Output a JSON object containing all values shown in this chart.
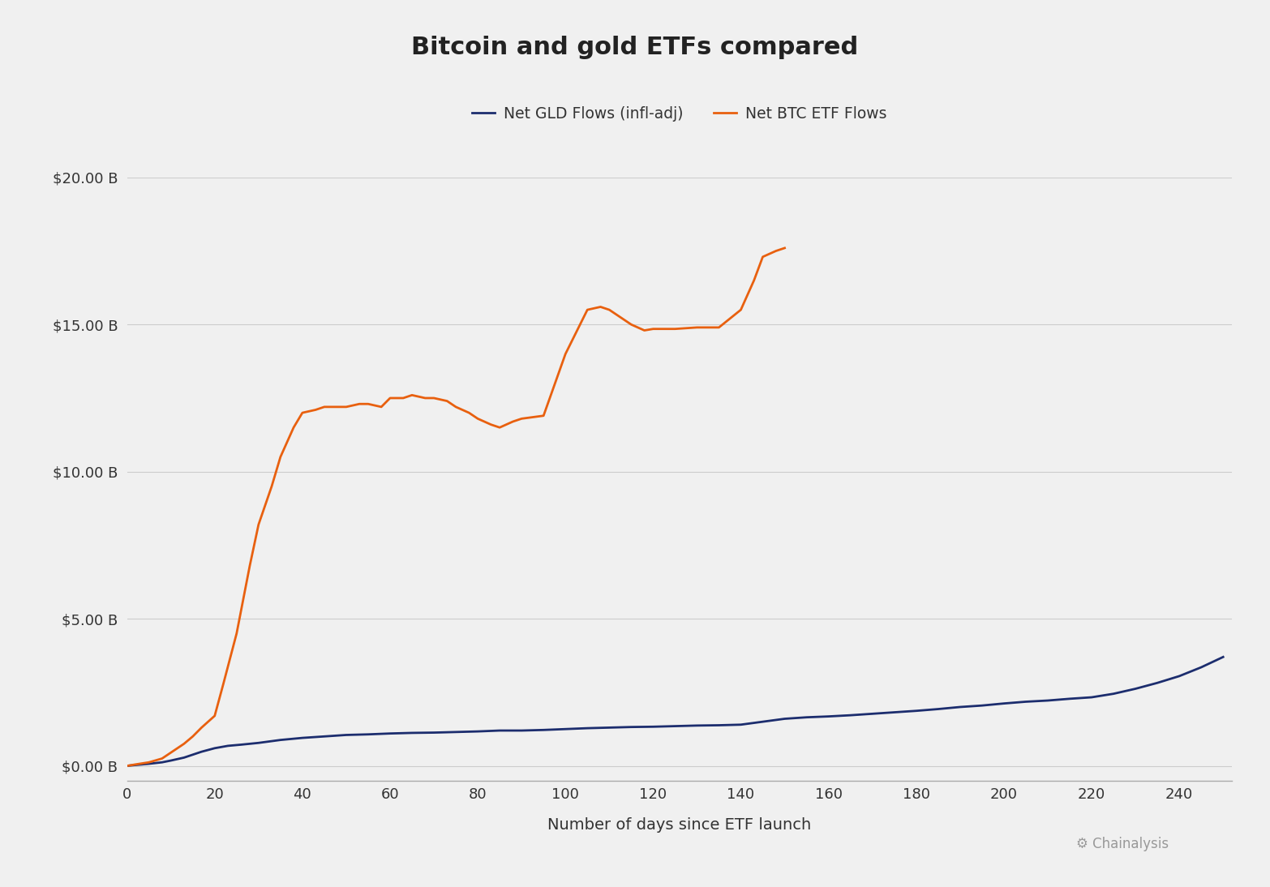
{
  "title": "Bitcoin and gold ETFs compared",
  "xlabel": "Number of days since ETF launch",
  "background_color": "#f0f0f0",
  "plot_bg_color": "#f0f0f0",
  "title_fontsize": 22,
  "legend_labels": [
    "Net GLD Flows (infl-adj)",
    "Net BTC ETF Flows"
  ],
  "gld_color": "#1c2d6e",
  "btc_color": "#e8600f",
  "ylim": [
    0,
    20
  ],
  "xlim": [
    0,
    252
  ],
  "yticks": [
    0,
    5,
    10,
    15,
    20
  ],
  "xticks": [
    0,
    20,
    40,
    60,
    80,
    100,
    120,
    140,
    160,
    180,
    200,
    220,
    240
  ],
  "gld_x": [
    0,
    2,
    5,
    8,
    10,
    13,
    17,
    20,
    23,
    26,
    30,
    35,
    40,
    45,
    50,
    55,
    60,
    65,
    70,
    75,
    80,
    85,
    90,
    95,
    100,
    105,
    110,
    115,
    120,
    125,
    130,
    135,
    140,
    145,
    150,
    155,
    160,
    165,
    170,
    175,
    180,
    185,
    190,
    195,
    200,
    205,
    210,
    215,
    220,
    225,
    230,
    235,
    240,
    245,
    250
  ],
  "gld_y": [
    0.0,
    0.03,
    0.07,
    0.12,
    0.18,
    0.28,
    0.48,
    0.6,
    0.68,
    0.72,
    0.78,
    0.88,
    0.95,
    1.0,
    1.05,
    1.07,
    1.1,
    1.12,
    1.13,
    1.15,
    1.17,
    1.2,
    1.2,
    1.22,
    1.25,
    1.28,
    1.3,
    1.32,
    1.33,
    1.35,
    1.37,
    1.38,
    1.4,
    1.5,
    1.6,
    1.65,
    1.68,
    1.72,
    1.77,
    1.82,
    1.87,
    1.93,
    2.0,
    2.05,
    2.12,
    2.18,
    2.22,
    2.28,
    2.33,
    2.45,
    2.62,
    2.82,
    3.05,
    3.35,
    3.7
  ],
  "btc_x": [
    0,
    2,
    5,
    8,
    10,
    13,
    15,
    17,
    20,
    22,
    25,
    28,
    30,
    33,
    35,
    38,
    40,
    43,
    45,
    48,
    50,
    53,
    55,
    58,
    60,
    63,
    65,
    68,
    70,
    73,
    75,
    78,
    80,
    83,
    85,
    88,
    90,
    95,
    100,
    105,
    108,
    110,
    113,
    115,
    118,
    120,
    125,
    130,
    135,
    140,
    143,
    145,
    148,
    150
  ],
  "btc_y": [
    0.0,
    0.05,
    0.12,
    0.25,
    0.45,
    0.75,
    1.0,
    1.3,
    1.7,
    2.8,
    4.5,
    6.8,
    8.2,
    9.5,
    10.5,
    11.5,
    12.0,
    12.1,
    12.2,
    12.2,
    12.2,
    12.3,
    12.3,
    12.2,
    12.5,
    12.5,
    12.6,
    12.5,
    12.5,
    12.4,
    12.2,
    12.0,
    11.8,
    11.6,
    11.5,
    11.7,
    11.8,
    11.9,
    14.0,
    15.5,
    15.6,
    15.5,
    15.2,
    15.0,
    14.8,
    14.85,
    14.85,
    14.9,
    14.9,
    15.5,
    16.5,
    17.3,
    17.5,
    17.6
  ]
}
